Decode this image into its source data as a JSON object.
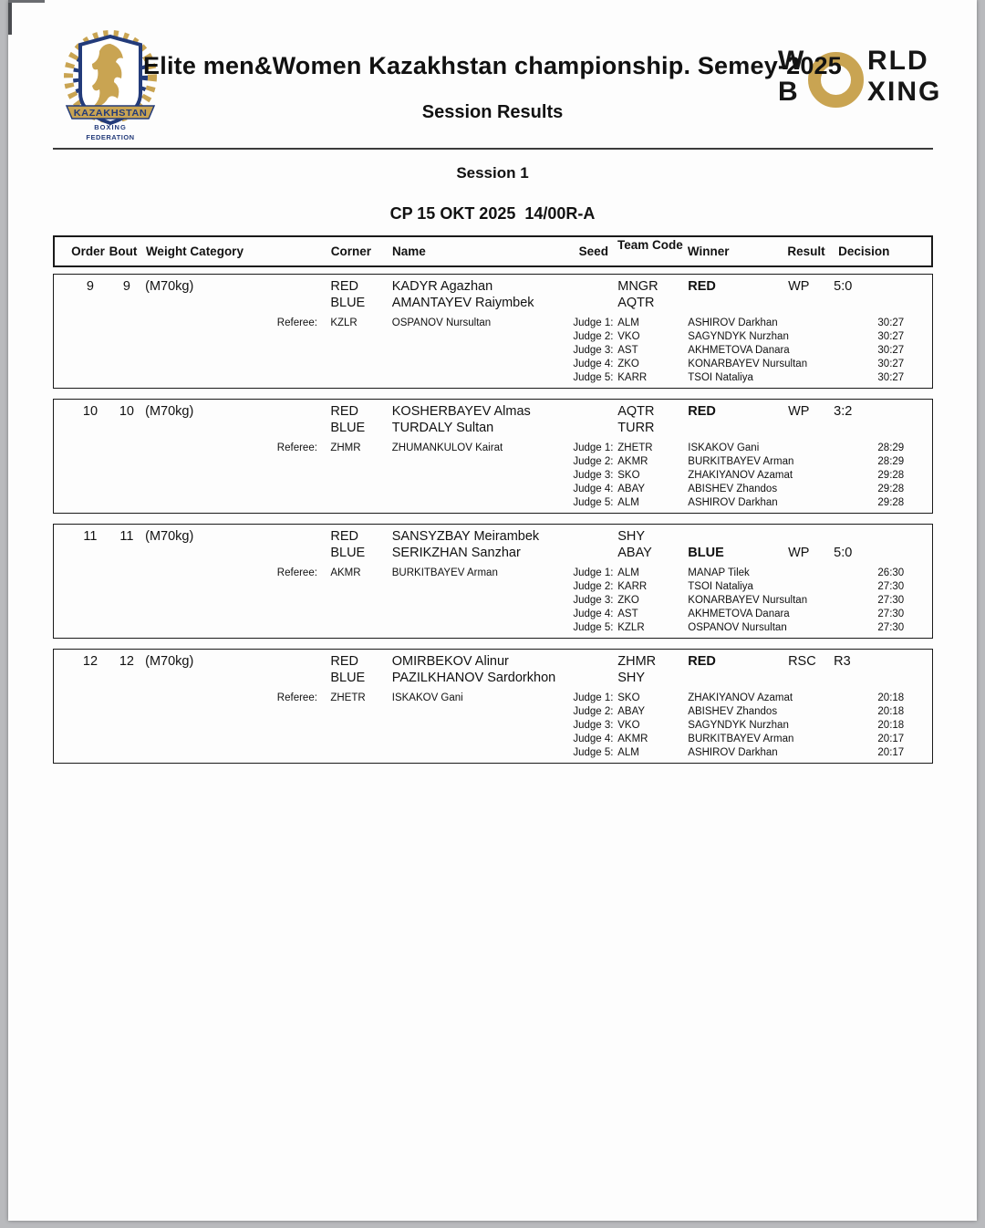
{
  "header": {
    "title": "Elite men&Women Kazakhstan championship. Semey-2025",
    "subtitle": "Session Results",
    "federation_logo": {
      "banner": "KAZAKHSTAN",
      "line1": "BOXING",
      "line2": "FEDERATION"
    },
    "world_boxing_logo": {
      "top_left": "W",
      "top_right": "RLD",
      "bottom_left": "B",
      "bottom_right": "XING"
    }
  },
  "session": {
    "name": "Session 1",
    "info": "CP 15 OKT 2025  14/00R-A"
  },
  "colors": {
    "gold": "#c9a452",
    "navy": "#233b7a",
    "border": "#1a1a1a"
  },
  "table": {
    "headers": [
      "Order",
      "Bout",
      "Weight Category",
      "Corner",
      "Name",
      "Seed",
      "Team Code",
      "Winner",
      "Result",
      "Decision"
    ],
    "referee_label": "Referee:",
    "bouts": [
      {
        "order": "9",
        "bout": "9",
        "weight": "(M70kg)",
        "red": {
          "corner": "RED",
          "name": "KADYR Agazhan",
          "team": "MNGR",
          "winner": "RED",
          "result": "WP",
          "decision": "5:0"
        },
        "blue": {
          "corner": "BLUE",
          "name": "AMANTAYEV Raiymbek",
          "team": "AQTR",
          "winner": "",
          "result": "",
          "decision": ""
        },
        "referee": {
          "code": "KZLR",
          "name": "OSPANOV Nursultan"
        },
        "judges": [
          {
            "label": "Judge 1:",
            "code": "ALM",
            "name": "ASHIROV Darkhan",
            "score": "30:27"
          },
          {
            "label": "Judge 2:",
            "code": "VKO",
            "name": "SAGYNDYK Nurzhan",
            "score": "30:27"
          },
          {
            "label": "Judge 3:",
            "code": "AST",
            "name": "AKHMETOVA Danara",
            "score": "30:27"
          },
          {
            "label": "Judge 4:",
            "code": "ZKO",
            "name": "KONARBAYEV Nursultan",
            "score": "30:27"
          },
          {
            "label": "Judge 5:",
            "code": "KARR",
            "name": "TSOI Nataliya",
            "score": "30:27"
          }
        ]
      },
      {
        "order": "10",
        "bout": "10",
        "weight": "(M70kg)",
        "red": {
          "corner": "RED",
          "name": "KOSHERBAYEV Almas",
          "team": "AQTR",
          "winner": "RED",
          "result": "WP",
          "decision": "3:2"
        },
        "blue": {
          "corner": "BLUE",
          "name": "TURDALY Sultan",
          "team": "TURR",
          "winner": "",
          "result": "",
          "decision": ""
        },
        "referee": {
          "code": "ZHMR",
          "name": "ZHUMANKULOV Kairat"
        },
        "judges": [
          {
            "label": "Judge 1:",
            "code": "ZHETR",
            "name": "ISKAKOV Gani",
            "score": "28:29"
          },
          {
            "label": "Judge 2:",
            "code": "AKMR",
            "name": "BURKITBAYEV Arman",
            "score": "28:29"
          },
          {
            "label": "Judge 3:",
            "code": "SKO",
            "name": "ZHAKIYANOV Azamat",
            "score": "29:28"
          },
          {
            "label": "Judge 4:",
            "code": "ABAY",
            "name": "ABISHEV Zhandos",
            "score": "29:28"
          },
          {
            "label": "Judge 5:",
            "code": "ALM",
            "name": "ASHIROV Darkhan",
            "score": "29:28"
          }
        ]
      },
      {
        "order": "11",
        "bout": "11",
        "weight": "(M70kg)",
        "red": {
          "corner": "RED",
          "name": "SANSYZBAY Meirambek",
          "team": "SHY",
          "winner": "",
          "result": "",
          "decision": ""
        },
        "blue": {
          "corner": "BLUE",
          "name": "SERIKZHAN Sanzhar",
          "team": "ABAY",
          "winner": "BLUE",
          "result": "WP",
          "decision": "5:0"
        },
        "referee": {
          "code": "AKMR",
          "name": "BURKITBAYEV Arman"
        },
        "judges": [
          {
            "label": "Judge 1:",
            "code": "ALM",
            "name": "MANAP Tilek",
            "score": "26:30"
          },
          {
            "label": "Judge 2:",
            "code": "KARR",
            "name": "TSOI Nataliya",
            "score": "27:30"
          },
          {
            "label": "Judge 3:",
            "code": "ZKO",
            "name": "KONARBAYEV Nursultan",
            "score": "27:30"
          },
          {
            "label": "Judge 4:",
            "code": "AST",
            "name": "AKHMETOVA Danara",
            "score": "27:30"
          },
          {
            "label": "Judge 5:",
            "code": "KZLR",
            "name": "OSPANOV Nursultan",
            "score": "27:30"
          }
        ]
      },
      {
        "order": "12",
        "bout": "12",
        "weight": "(M70kg)",
        "red": {
          "corner": "RED",
          "name": "OMIRBEKOV Alinur",
          "team": "ZHMR",
          "winner": "RED",
          "result": "RSC",
          "decision": "R3"
        },
        "blue": {
          "corner": "BLUE",
          "name": "PAZILKHANOV Sardorkhon",
          "team": "SHY",
          "winner": "",
          "result": "",
          "decision": ""
        },
        "referee": {
          "code": "ZHETR",
          "name": "ISKAKOV Gani"
        },
        "judges": [
          {
            "label": "Judge 1:",
            "code": "SKO",
            "name": "ZHAKIYANOV Azamat",
            "score": "20:18"
          },
          {
            "label": "Judge 2:",
            "code": "ABAY",
            "name": "ABISHEV Zhandos",
            "score": "20:18"
          },
          {
            "label": "Judge 3:",
            "code": "VKO",
            "name": "SAGYNDYK Nurzhan",
            "score": "20:18"
          },
          {
            "label": "Judge 4:",
            "code": "AKMR",
            "name": "BURKITBAYEV Arman",
            "score": "20:17"
          },
          {
            "label": "Judge 5:",
            "code": "ALM",
            "name": "ASHIROV Darkhan",
            "score": "20:17"
          }
        ]
      }
    ]
  }
}
